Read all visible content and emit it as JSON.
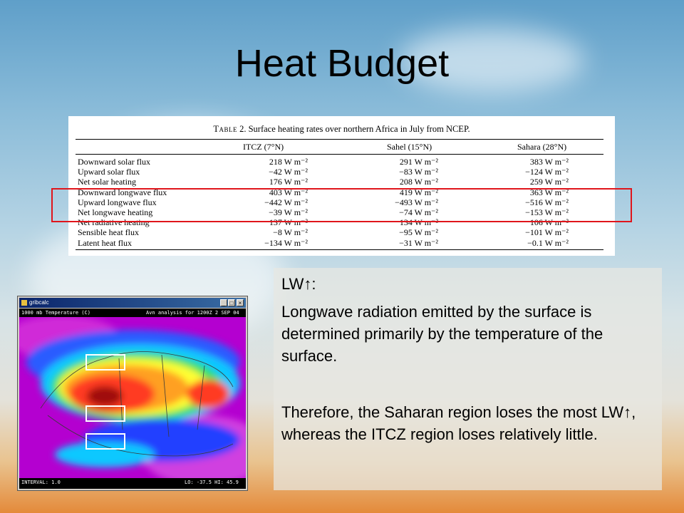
{
  "slide": {
    "title": "Heat Budget"
  },
  "table": {
    "caption_prefix": "Table",
    "caption_rest": " 2. Surface heating rates over northern Africa in July from NCEP.",
    "columns": [
      "ITCZ (7°N)",
      "Sahel (15°N)",
      "Sahara (28°N)"
    ],
    "rows": [
      {
        "label": "Downward solar flux",
        "values": [
          "218 W m⁻²",
          "291 W m⁻²",
          "383 W m⁻²"
        ]
      },
      {
        "label": "Upward solar flux",
        "values": [
          "−42 W m⁻²",
          "−83 W m⁻²",
          "−124 W m⁻²"
        ]
      },
      {
        "label": "Net solar heating",
        "values": [
          "176 W m⁻²",
          "208 W m⁻²",
          "259 W m⁻²"
        ]
      },
      {
        "label": "Downward longwave flux",
        "values": [
          "403 W m⁻²",
          "419 W m⁻²",
          "363 W m⁻²"
        ]
      },
      {
        "label": "Upward longwave flux",
        "values": [
          "−442 W m⁻²",
          "−493 W m⁻²",
          "−516 W m⁻²"
        ]
      },
      {
        "label": "Net longwave heating",
        "values": [
          "−39 W m⁻²",
          "−74 W m⁻²",
          "−153 W m⁻²"
        ]
      },
      {
        "label": "Net radiative heating",
        "values": [
          "137 W m⁻²",
          "134 W m⁻²",
          "106 W m⁻²"
        ]
      },
      {
        "label": "Sensible heat flux",
        "values": [
          "−8 W m⁻²",
          "−95 W m⁻²",
          "−101 W m⁻²"
        ]
      },
      {
        "label": "Latent heat flux",
        "values": [
          "−134 W m⁻²",
          "−31 W m⁻²",
          "−0.1 W m⁻²"
        ]
      }
    ],
    "highlight_color": "#e0151b"
  },
  "explanation": {
    "heading": "LW↑:",
    "paragraph1": "Longwave radiation emitted by the surface is determined primarily by the temperature of the surface.",
    "paragraph2": "Therefore, the Saharan region loses the most LW↑, whereas the ITCZ region loses relatively little."
  },
  "map_window": {
    "app_name": "gribcalc",
    "minimize_glyph": "_",
    "maximize_glyph": "□",
    "close_glyph": "×",
    "header_left": "1000 mb Temperature (C)",
    "header_right": "Avn analysis for 1200Z  2 SEP 04",
    "footer_left": "INTERVAL:   1.0",
    "footer_right": "LO: -37.5  HI: 45.9",
    "region_box_color": "#ffffff"
  }
}
